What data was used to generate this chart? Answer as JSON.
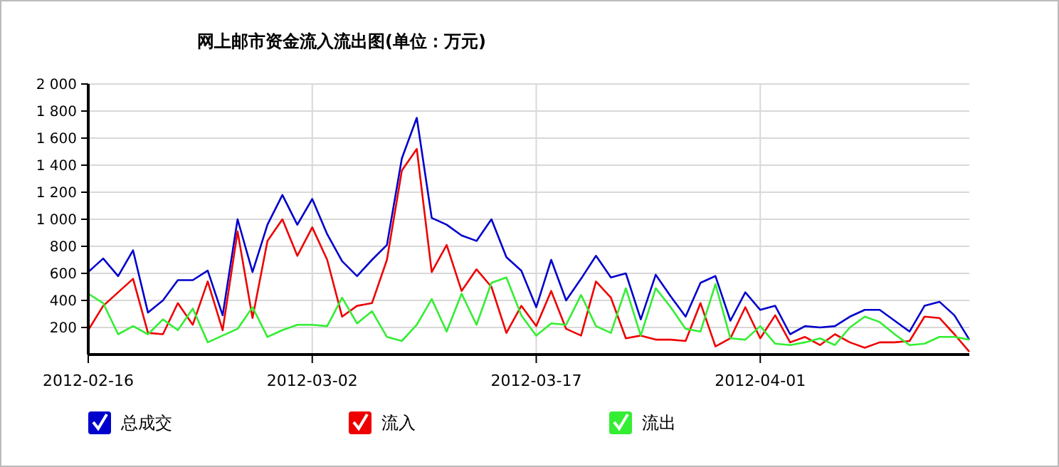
{
  "chart_data": {
    "type": "line",
    "title": "网上邮市资金流入流出图(单位：万元)",
    "x": [
      "2012-02-16",
      "2012-02-17",
      "2012-02-18",
      "2012-02-19",
      "2012-02-20",
      "2012-02-21",
      "2012-02-22",
      "2012-02-23",
      "2012-02-24",
      "2012-02-25",
      "2012-02-26",
      "2012-02-27",
      "2012-02-28",
      "2012-02-29",
      "2012-03-01",
      "2012-03-02",
      "2012-03-03",
      "2012-03-04",
      "2012-03-05",
      "2012-03-06",
      "2012-03-07",
      "2012-03-08",
      "2012-03-09",
      "2012-03-10",
      "2012-03-11",
      "2012-03-12",
      "2012-03-13",
      "2012-03-14",
      "2012-03-15",
      "2012-03-16",
      "2012-03-17",
      "2012-03-18",
      "2012-03-19",
      "2012-03-20",
      "2012-03-21",
      "2012-03-22",
      "2012-03-23",
      "2012-03-24",
      "2012-03-25",
      "2012-03-26",
      "2012-03-27",
      "2012-03-28",
      "2012-03-29",
      "2012-03-30",
      "2012-03-31",
      "2012-04-01",
      "2012-04-02",
      "2012-04-03",
      "2012-04-04",
      "2012-04-05",
      "2012-04-06",
      "2012-04-07",
      "2012-04-08",
      "2012-04-09",
      "2012-04-10",
      "2012-04-11",
      "2012-04-12",
      "2012-04-13",
      "2012-04-14",
      "2012-04-15"
    ],
    "series": [
      {
        "name": "总成交",
        "color": "#0000cc",
        "values": [
          610,
          710,
          580,
          770,
          310,
          400,
          550,
          550,
          620,
          290,
          1000,
          610,
          960,
          1180,
          960,
          1150,
          890,
          690,
          580,
          700,
          810,
          1450,
          1750,
          1010,
          960,
          880,
          840,
          1000,
          720,
          620,
          350,
          700,
          400,
          560,
          730,
          570,
          600,
          260,
          590,
          430,
          280,
          530,
          580,
          250,
          460,
          330,
          360,
          150,
          210,
          200,
          210,
          280,
          330,
          330,
          250,
          170,
          360,
          390,
          290,
          110
        ]
      },
      {
        "name": "流入",
        "color": "#ee0000",
        "values": [
          180,
          360,
          460,
          560,
          160,
          150,
          380,
          220,
          540,
          180,
          910,
          270,
          840,
          1000,
          730,
          940,
          700,
          280,
          360,
          380,
          700,
          1360,
          1520,
          610,
          810,
          470,
          630,
          500,
          160,
          360,
          210,
          470,
          190,
          140,
          540,
          420,
          120,
          140,
          110,
          110,
          100,
          380,
          60,
          120,
          350,
          120,
          290,
          90,
          130,
          70,
          150,
          90,
          50,
          90,
          90,
          100,
          280,
          270,
          150,
          20
        ]
      },
      {
        "name": "流出",
        "color": "#33ee33",
        "values": [
          450,
          380,
          150,
          210,
          150,
          260,
          180,
          340,
          90,
          140,
          190,
          350,
          130,
          180,
          220,
          220,
          210,
          420,
          230,
          320,
          130,
          100,
          220,
          410,
          170,
          450,
          220,
          530,
          570,
          290,
          140,
          230,
          220,
          440,
          210,
          160,
          490,
          140,
          490,
          350,
          190,
          170,
          520,
          120,
          110,
          210,
          80,
          70,
          90,
          120,
          70,
          200,
          280,
          240,
          150,
          70,
          80,
          130,
          130,
          110
        ]
      }
    ],
    "xlim": [
      "2012-02-16",
      "2012-04-15"
    ],
    "xticks": [
      "2012-02-16",
      "2012-03-02",
      "2012-03-17",
      "2012-04-01"
    ],
    "ylim": [
      0,
      2000
    ],
    "yticks": [
      {
        "value": 200,
        "label": "200"
      },
      {
        "value": 400,
        "label": "400"
      },
      {
        "value": 600,
        "label": "600"
      },
      {
        "value": 800,
        "label": "800"
      },
      {
        "value": 1000,
        "label": "1 000"
      },
      {
        "value": 1200,
        "label": "1 200"
      },
      {
        "value": 1400,
        "label": "1 400"
      },
      {
        "value": 1600,
        "label": "1 600"
      },
      {
        "value": 1800,
        "label": "1 800"
      },
      {
        "value": 2000,
        "label": "2 000"
      }
    ],
    "grid": true,
    "legend": "bottom",
    "marker": "none",
    "line_style": "solid"
  }
}
